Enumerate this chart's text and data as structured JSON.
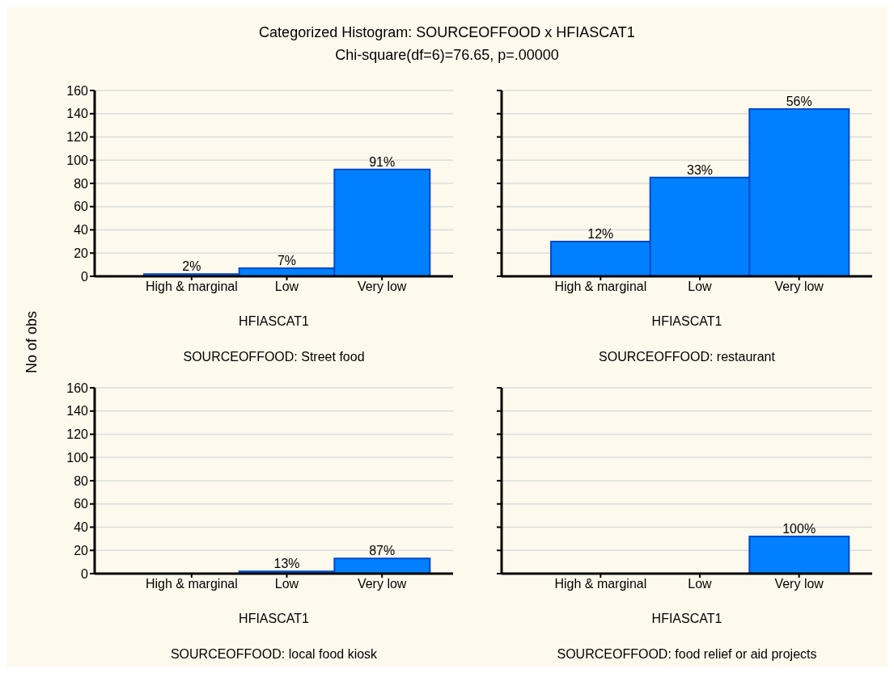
{
  "chart_data": [
    {
      "type": "bar",
      "title": "Categorized Histogram: SOURCEOFFOOD x HFIASCAT1",
      "subtitle": "Chi-square(df=6)=76.65, p=.00000",
      "ylabel": "No of obs",
      "xlabel": "HFIASCAT1",
      "annotations": [
        "SOURCEOFFOOD: Street food",
        {
          "text": "2%",
          "x": "High & marginal",
          "y": 2
        },
        {
          "text": "7%",
          "x": "Low",
          "y": 7
        },
        {
          "text": "91%",
          "x": "Very low",
          "y": 92
        }
      ],
      "categories": [
        "High & marginal",
        "Low",
        "Very low"
      ],
      "values": [
        2,
        7,
        92
      ],
      "color": "#0080ff",
      "ylim": [
        0,
        160
      ],
      "yticks": [
        0,
        20,
        40,
        60,
        80,
        100,
        120,
        140,
        160
      ],
      "grid": "y"
    },
    {
      "type": "bar",
      "xlabel": "HFIASCAT1",
      "annotations": [
        "SOURCEOFFOOD: restaurant",
        {
          "text": "12%",
          "x": "High & marginal",
          "y": 30
        },
        {
          "text": "33%",
          "x": "Low",
          "y": 85
        },
        {
          "text": "56%",
          "x": "Very low",
          "y": 144
        }
      ],
      "categories": [
        "High & marginal",
        "Low",
        "Very low"
      ],
      "values": [
        30,
        85,
        144
      ],
      "color": "#0080ff",
      "ylim": [
        0,
        160
      ],
      "yticks": [
        0,
        20,
        40,
        60,
        80,
        100,
        120,
        140,
        160
      ],
      "grid": "y",
      "tick_labels": "x"
    },
    {
      "type": "bar",
      "xlabel": "HFIASCAT1",
      "annotations": [
        "SOURCEOFFOOD: local food kiosk",
        {
          "text": "13%",
          "x": "Low",
          "y": 2
        },
        {
          "text": "87%",
          "x": "Very low",
          "y": 13
        }
      ],
      "categories": [
        "High & marginal",
        "Low",
        "Very low"
      ],
      "values": [
        0,
        2,
        13
      ],
      "color": "#0080ff",
      "ylim": [
        0,
        160
      ],
      "yticks": [
        0,
        20,
        40,
        60,
        80,
        100,
        120,
        140,
        160
      ],
      "grid": "y"
    },
    {
      "type": "bar",
      "xlabel": "HFIASCAT1",
      "annotations": [
        "SOURCEOFFOOD: food relief or aid projects",
        {
          "text": "100%",
          "x": "Very low",
          "y": 32
        }
      ],
      "categories": [
        "High & marginal",
        "Low",
        "Very low"
      ],
      "values": [
        0,
        0,
        32
      ],
      "color": "#0080ff",
      "ylim": [
        0,
        160
      ],
      "yticks": [
        0,
        20,
        40,
        60,
        80,
        100,
        120,
        140,
        160
      ],
      "grid": "y",
      "tick_labels": "x"
    }
  ]
}
